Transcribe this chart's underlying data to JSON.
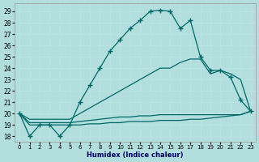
{
  "xlabel": "Humidex (Indice chaleur)",
  "bg_color": "#b2dede",
  "grid_color": "#c0e4e4",
  "line_color": "#006868",
  "xlim": [
    -0.5,
    23.5
  ],
  "ylim": [
    17.5,
    29.7
  ],
  "yticks": [
    18,
    19,
    20,
    21,
    22,
    23,
    24,
    25,
    26,
    27,
    28,
    29
  ],
  "xticks": [
    0,
    1,
    2,
    3,
    4,
    5,
    6,
    7,
    8,
    9,
    10,
    11,
    12,
    13,
    14,
    15,
    16,
    17,
    18,
    19,
    20,
    21,
    22,
    23
  ],
  "series": [
    {
      "x": [
        0,
        1,
        2,
        3,
        4,
        5,
        6,
        7,
        8,
        9,
        10,
        11,
        12,
        13,
        14,
        15,
        16,
        17,
        18,
        19,
        20,
        21,
        22,
        23
      ],
      "y": [
        20,
        18,
        19,
        19,
        18,
        19,
        21,
        22.5,
        24,
        25.5,
        26.5,
        27.5,
        28.2,
        29.0,
        29.1,
        29.0,
        27.5,
        28.2,
        25.0,
        23.8,
        23.8,
        23.2,
        21.2,
        20.2
      ],
      "marker": "+",
      "markersize": 4,
      "linewidth": 0.9
    },
    {
      "x": [
        0,
        1,
        2,
        3,
        4,
        5,
        6,
        7,
        8,
        9,
        10,
        11,
        12,
        13,
        14,
        15,
        16,
        17,
        18,
        19,
        20,
        21,
        22,
        23
      ],
      "y": [
        20,
        19.5,
        19.5,
        19.5,
        19.5,
        19.5,
        20.0,
        20.5,
        21.0,
        21.5,
        22.0,
        22.5,
        23.0,
        23.5,
        24.0,
        24.0,
        24.5,
        24.8,
        24.8,
        23.5,
        23.8,
        23.5,
        23.0,
        20.2
      ],
      "marker": null,
      "markersize": 0,
      "linewidth": 0.9
    },
    {
      "x": [
        0,
        1,
        2,
        3,
        4,
        5,
        6,
        7,
        8,
        9,
        10,
        11,
        12,
        13,
        14,
        15,
        16,
        17,
        18,
        19,
        20,
        21,
        22,
        23
      ],
      "y": [
        20,
        19.2,
        19.2,
        19.2,
        19.2,
        19.2,
        19.3,
        19.4,
        19.5,
        19.6,
        19.7,
        19.7,
        19.8,
        19.8,
        19.9,
        19.9,
        19.9,
        19.9,
        19.9,
        19.9,
        19.9,
        19.9,
        19.9,
        20.2
      ],
      "marker": null,
      "markersize": 0,
      "linewidth": 0.9
    },
    {
      "x": [
        0,
        1,
        2,
        3,
        4,
        5,
        6,
        7,
        8,
        9,
        10,
        11,
        12,
        13,
        14,
        15,
        16,
        17,
        18,
        19,
        20,
        21,
        22,
        23
      ],
      "y": [
        20,
        19.0,
        19.0,
        19.0,
        19.0,
        19.0,
        19.0,
        19.1,
        19.1,
        19.2,
        19.2,
        19.3,
        19.3,
        19.3,
        19.4,
        19.4,
        19.4,
        19.5,
        19.5,
        19.6,
        19.7,
        19.8,
        19.9,
        20.2
      ],
      "marker": null,
      "markersize": 0,
      "linewidth": 0.9
    }
  ]
}
